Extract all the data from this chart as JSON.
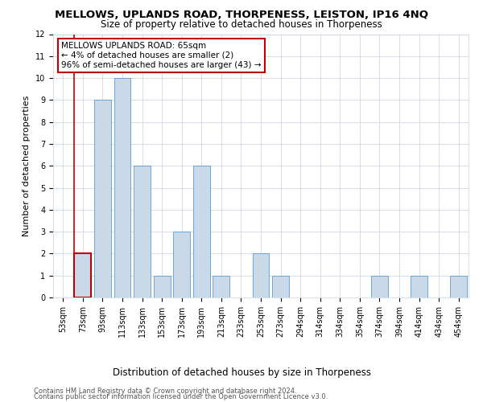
{
  "title": "MELLOWS, UPLANDS ROAD, THORPENESS, LEISTON, IP16 4NQ",
  "subtitle": "Size of property relative to detached houses in Thorpeness",
  "xlabel": "Distribution of detached houses by size in Thorpeness",
  "ylabel": "Number of detached properties",
  "categories": [
    "53sqm",
    "73sqm",
    "93sqm",
    "113sqm",
    "133sqm",
    "153sqm",
    "173sqm",
    "193sqm",
    "213sqm",
    "233sqm",
    "253sqm",
    "273sqm",
    "294sqm",
    "314sqm",
    "334sqm",
    "354sqm",
    "374sqm",
    "394sqm",
    "414sqm",
    "434sqm",
    "454sqm"
  ],
  "values": [
    0,
    2,
    9,
    10,
    6,
    1,
    3,
    6,
    1,
    0,
    2,
    1,
    0,
    0,
    0,
    0,
    1,
    0,
    1,
    0,
    1
  ],
  "bar_color": "#c9d9e8",
  "bar_edge_color": "#5b9bd5",
  "highlight_index": 1,
  "highlight_edge_color": "#c00000",
  "annotation_line1": "MELLOWS UPLANDS ROAD: 65sqm",
  "annotation_line2": "← 4% of detached houses are smaller (2)",
  "annotation_line3": "96% of semi-detached houses are larger (43) →",
  "annotation_box_edge_color": "#c00000",
  "annotation_box_facecolor": "#ffffff",
  "ylim": [
    0,
    12
  ],
  "yticks": [
    0,
    1,
    2,
    3,
    4,
    5,
    6,
    7,
    8,
    9,
    10,
    11,
    12
  ],
  "grid_color": "#d0d8e4",
  "background_color": "#ffffff",
  "footer_line1": "Contains HM Land Registry data © Crown copyright and database right 2024.",
  "footer_line2": "Contains public sector information licensed under the Open Government Licence v3.0.",
  "title_fontsize": 9.5,
  "subtitle_fontsize": 8.5,
  "ylabel_fontsize": 8,
  "xlabel_fontsize": 8.5,
  "tick_fontsize": 7,
  "annotation_fontsize": 7.5,
  "footer_fontsize": 6
}
